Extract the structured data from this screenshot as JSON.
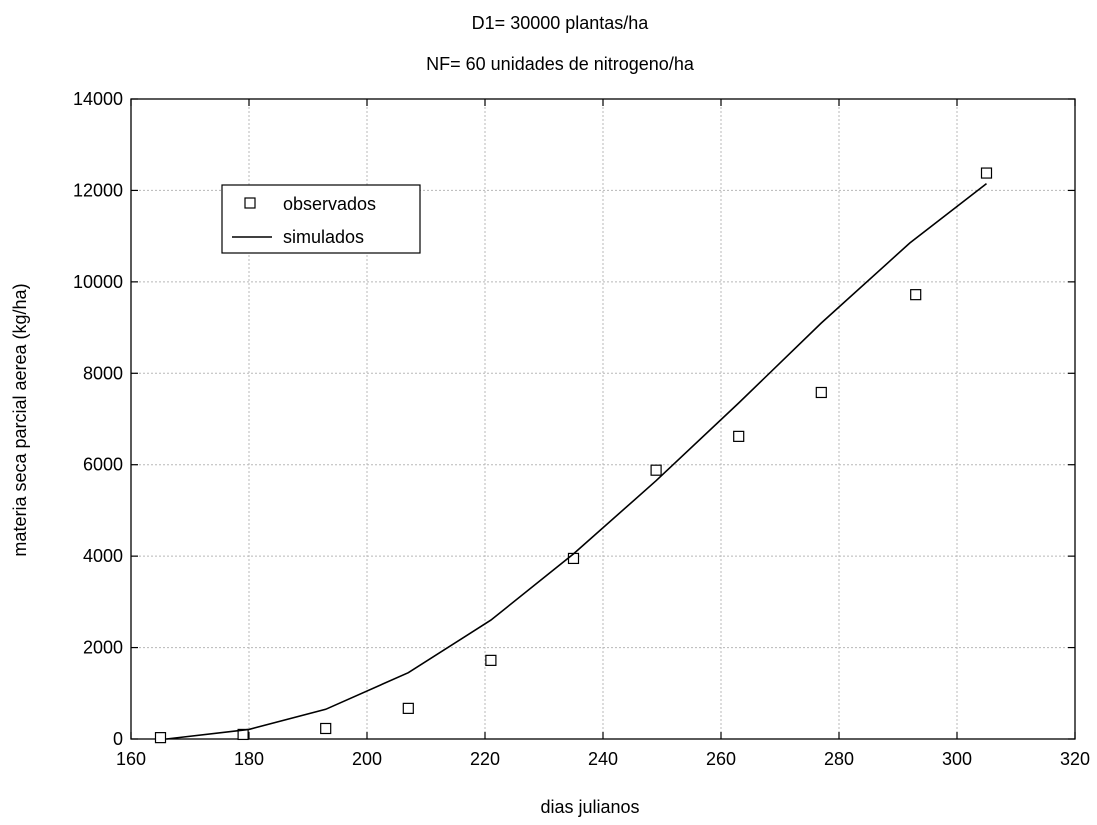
{
  "chart_data": {
    "type": "line",
    "title_lines": [
      "D1= 30000 plantas/ha",
      "NF= 60 unidades de nitrogeno/ha"
    ],
    "xlabel": "dias julianos",
    "ylabel": "materia seca parcial aerea (kg/ha)",
    "xlim": [
      160,
      320
    ],
    "ylim": [
      0,
      14000
    ],
    "xticks": [
      160,
      180,
      200,
      220,
      240,
      260,
      280,
      300,
      320
    ],
    "yticks": [
      0,
      2000,
      4000,
      6000,
      8000,
      10000,
      12000,
      14000
    ],
    "grid": true,
    "legend_position": "top-left",
    "series": [
      {
        "name": "observados",
        "kind": "scatter",
        "marker": "square",
        "points": [
          {
            "x": 165,
            "y": 30
          },
          {
            "x": 179,
            "y": 100
          },
          {
            "x": 193,
            "y": 230
          },
          {
            "x": 207,
            "y": 670
          },
          {
            "x": 221,
            "y": 1720
          },
          {
            "x": 235,
            "y": 3950
          },
          {
            "x": 249,
            "y": 5880
          },
          {
            "x": 263,
            "y": 6620
          },
          {
            "x": 277,
            "y": 7580
          },
          {
            "x": 293,
            "y": 9720
          },
          {
            "x": 305,
            "y": 12380
          }
        ]
      },
      {
        "name": "simulados",
        "kind": "line",
        "points": [
          {
            "x": 166,
            "y": 0
          },
          {
            "x": 180,
            "y": 210
          },
          {
            "x": 193,
            "y": 650
          },
          {
            "x": 207,
            "y": 1450
          },
          {
            "x": 221,
            "y": 2600
          },
          {
            "x": 235,
            "y": 4050
          },
          {
            "x": 249,
            "y": 5650
          },
          {
            "x": 263,
            "y": 7350
          },
          {
            "x": 277,
            "y": 9100
          },
          {
            "x": 292,
            "y": 10850
          },
          {
            "x": 305,
            "y": 12150
          }
        ]
      }
    ]
  }
}
